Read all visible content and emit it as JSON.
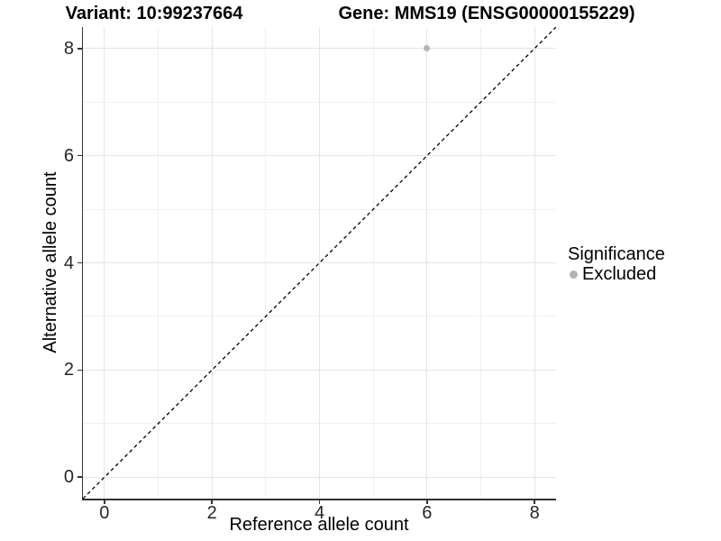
{
  "chart_data": {
    "type": "scatter",
    "title_left": "Variant: 10:99237664",
    "title_right": "Gene: MMS19 (ENSG00000155229)",
    "xlabel": "Reference allele count",
    "ylabel": "Alternative allele count",
    "xlim": [
      -0.4,
      8.4
    ],
    "ylim": [
      -0.4,
      8.4
    ],
    "x_ticks": [
      0,
      2,
      4,
      6,
      8
    ],
    "y_ticks": [
      0,
      2,
      4,
      6,
      8
    ],
    "x_minor_ticks": [
      1,
      3,
      5,
      7
    ],
    "y_minor_ticks": [
      1,
      3,
      5,
      7
    ],
    "grid": "on",
    "legend_position": "right",
    "points": [
      {
        "x": 6,
        "y": 8,
        "series": "Excluded"
      }
    ],
    "reference_line": {
      "slope": 1,
      "intercept": 0,
      "style": "dashed"
    },
    "legend": {
      "title": "Significance",
      "entries": [
        {
          "label": "Excluded",
          "color": "#b4b4b4"
        }
      ]
    }
  },
  "colors": {
    "background": "#ffffff",
    "point": "#b4b4b4",
    "grid_major": "#e4e4e4",
    "grid_minor": "#f0f0f0",
    "axis_line": "#333333",
    "tick_text": "#262626",
    "reference_line": "#000000"
  }
}
